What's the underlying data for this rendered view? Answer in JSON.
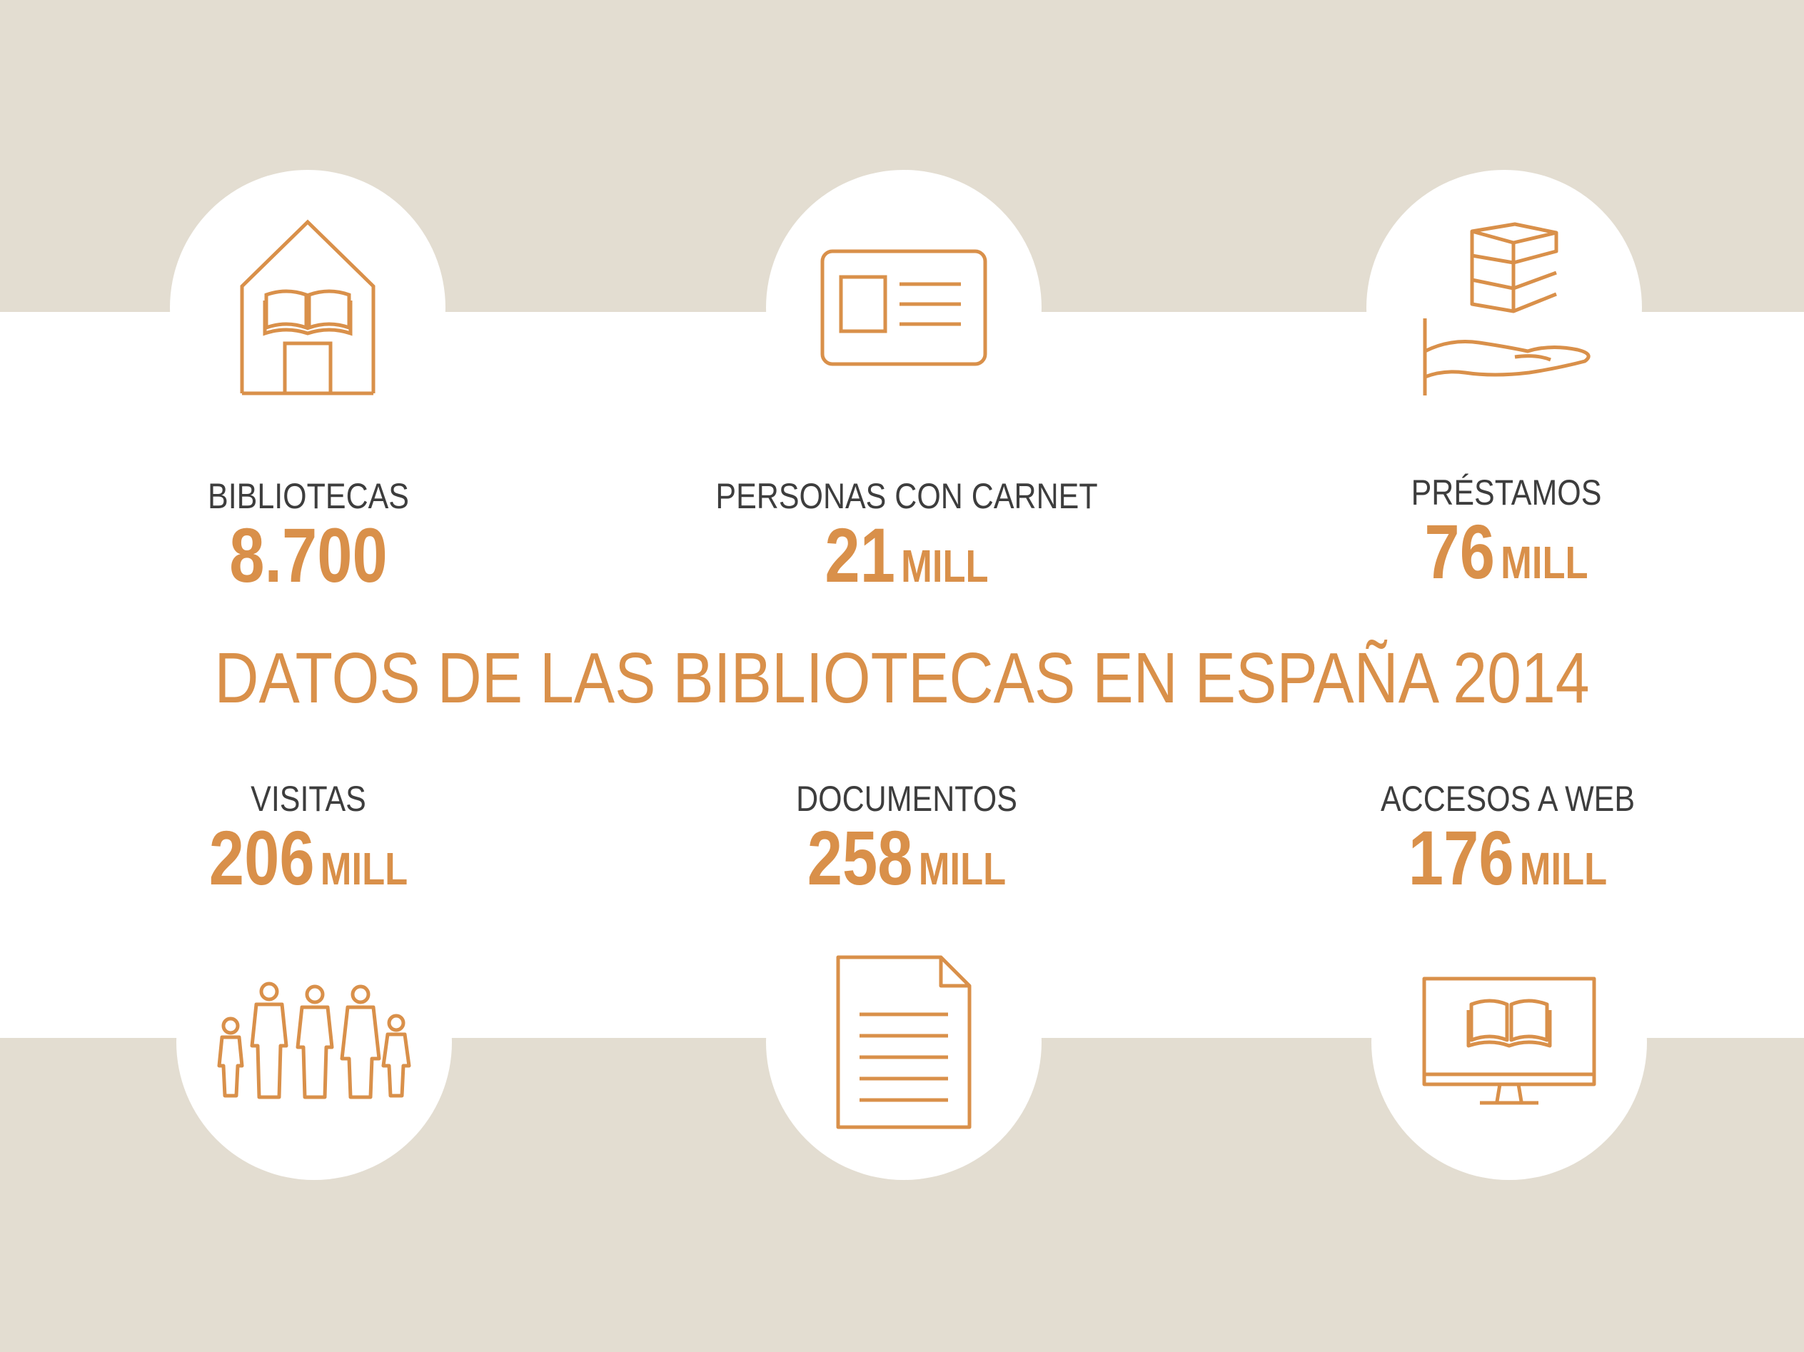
{
  "title": "DATOS DE LAS BIBLIOTECAS EN ESPAÑA 2014",
  "colors": {
    "accent": "#d9904a",
    "band": "#e3ddd1",
    "text": "#3d3d3d",
    "background": "#ffffff"
  },
  "stats": [
    {
      "label": "BIBLIOTECAS",
      "number": "8.700",
      "unit": "",
      "icon": "house-with-book-icon"
    },
    {
      "label": "PERSONAS CON CARNET",
      "number": "21",
      "unit": "MILL",
      "icon": "id-card-icon"
    },
    {
      "label": "PRÉSTAMOS",
      "number": "76",
      "unit": "MILL",
      "icon": "books-on-hand-icon"
    },
    {
      "label": "VISITAS",
      "number": "206",
      "unit": "MILL",
      "icon": "family-people-icon"
    },
    {
      "label": "DOCUMENTOS",
      "number": "258",
      "unit": "MILL",
      "icon": "document-icon"
    },
    {
      "label": "ACCESOS A WEB",
      "number": "176",
      "unit": "MILL",
      "icon": "monitor-book-icon"
    }
  ]
}
